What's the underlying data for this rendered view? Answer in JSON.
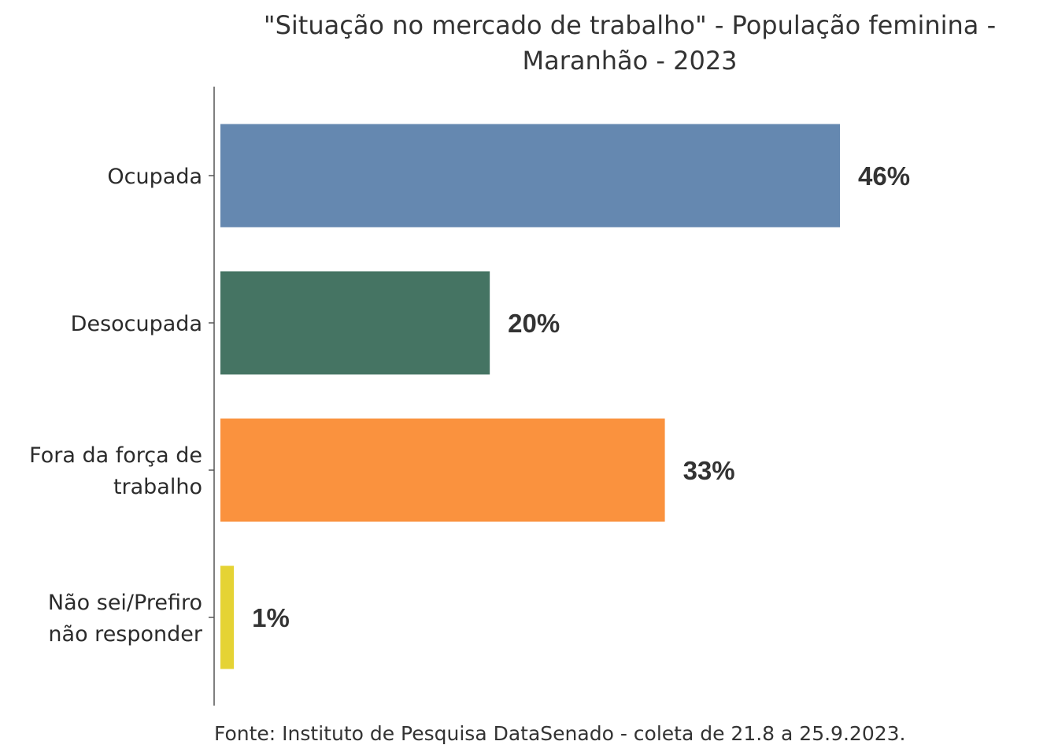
{
  "chart_data": {
    "type": "bar",
    "orientation": "horizontal",
    "title_lines": [
      "\"Situação no mercado de trabalho\" - População feminina -",
      "Maranhão - 2023"
    ],
    "categories": [
      [
        "Ocupada"
      ],
      [
        "Desocupada"
      ],
      [
        "Fora da força de",
        "trabalho"
      ],
      [
        "Não sei/Prefiro",
        "não responder"
      ]
    ],
    "values": [
      46,
      20,
      33,
      1
    ],
    "value_labels": [
      "46%",
      "20%",
      "33%",
      "1%"
    ],
    "colors": [
      "#6588b0",
      "#457463",
      "#fa923e",
      "#e5d334"
    ],
    "xlim": [
      0,
      46
    ],
    "grid": false,
    "source": "Fonte: Instituto de Pesquisa DataSenado - coleta de 21.8 a 25.9.2023."
  }
}
